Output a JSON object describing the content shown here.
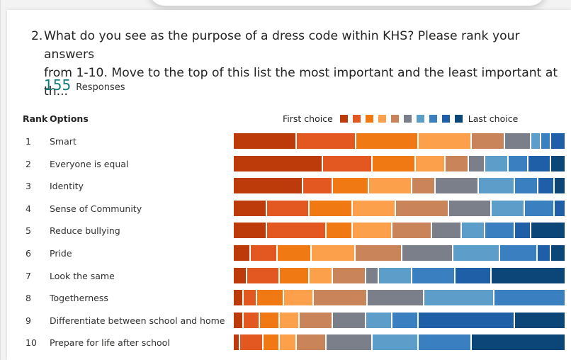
{
  "question": {
    "number": "2.",
    "line1": "What do you see as the purpose of a dress code within KHS?   Please rank your answers",
    "line2": "from 1-10.  Move to the top of this list the most important and the least important at th..."
  },
  "responses": {
    "count": "155",
    "label": "Responses"
  },
  "table_headers": {
    "rank": "Rank",
    "options": "Options"
  },
  "legend": {
    "first": "First choice",
    "last": "Last choice"
  },
  "colors": [
    "#bd3b0a",
    "#e35720",
    "#f07914",
    "#fda04c",
    "#c9845a",
    "#7a7f89",
    "#5c9ec9",
    "#3a80c0",
    "#1e5fa8",
    "#0c4577"
  ],
  "rows": [
    {
      "rank": "1",
      "label": "Smart",
      "shares": [
        19,
        18,
        19,
        16,
        10,
        8,
        3,
        3,
        4,
        0
      ]
    },
    {
      "rank": "2",
      "label": "Everyone is equal",
      "shares": [
        27,
        15,
        13,
        9,
        7,
        5,
        7,
        6,
        7,
        4
      ]
    },
    {
      "rank": "3",
      "label": "Identity",
      "shares": [
        21,
        9,
        11,
        13,
        7,
        13,
        11,
        7,
        5,
        3
      ]
    },
    {
      "rank": "4",
      "label": "Sense of Community",
      "shares": [
        10,
        13,
        13,
        13,
        16,
        13,
        10,
        9,
        3,
        0
      ]
    },
    {
      "rank": "5",
      "label": "Reduce bullying",
      "shares": [
        10,
        18,
        8,
        12,
        12,
        9,
        7,
        9,
        5,
        10
      ]
    },
    {
      "rank": "6",
      "label": "Pride",
      "shares": [
        5,
        8,
        10,
        13,
        14,
        15,
        14,
        11,
        4,
        4
      ]
    },
    {
      "rank": "7",
      "label": "Look the same",
      "shares": [
        4,
        10,
        9,
        7,
        10,
        4,
        10,
        13,
        11,
        22
      ]
    },
    {
      "rank": "8",
      "label": "Togetherness",
      "shares": [
        3,
        4,
        8,
        9,
        16,
        17,
        21,
        21,
        0,
        0
      ]
    },
    {
      "rank": "9",
      "label": "Differentiate between school and home",
      "shares": [
        3,
        5,
        6,
        6,
        10,
        10,
        8,
        8,
        29,
        15
      ]
    },
    {
      "rank": "10",
      "label": "Prepare for life after school",
      "shares": [
        2,
        7,
        5,
        5,
        9,
        14,
        14,
        16,
        0,
        28
      ]
    }
  ]
}
